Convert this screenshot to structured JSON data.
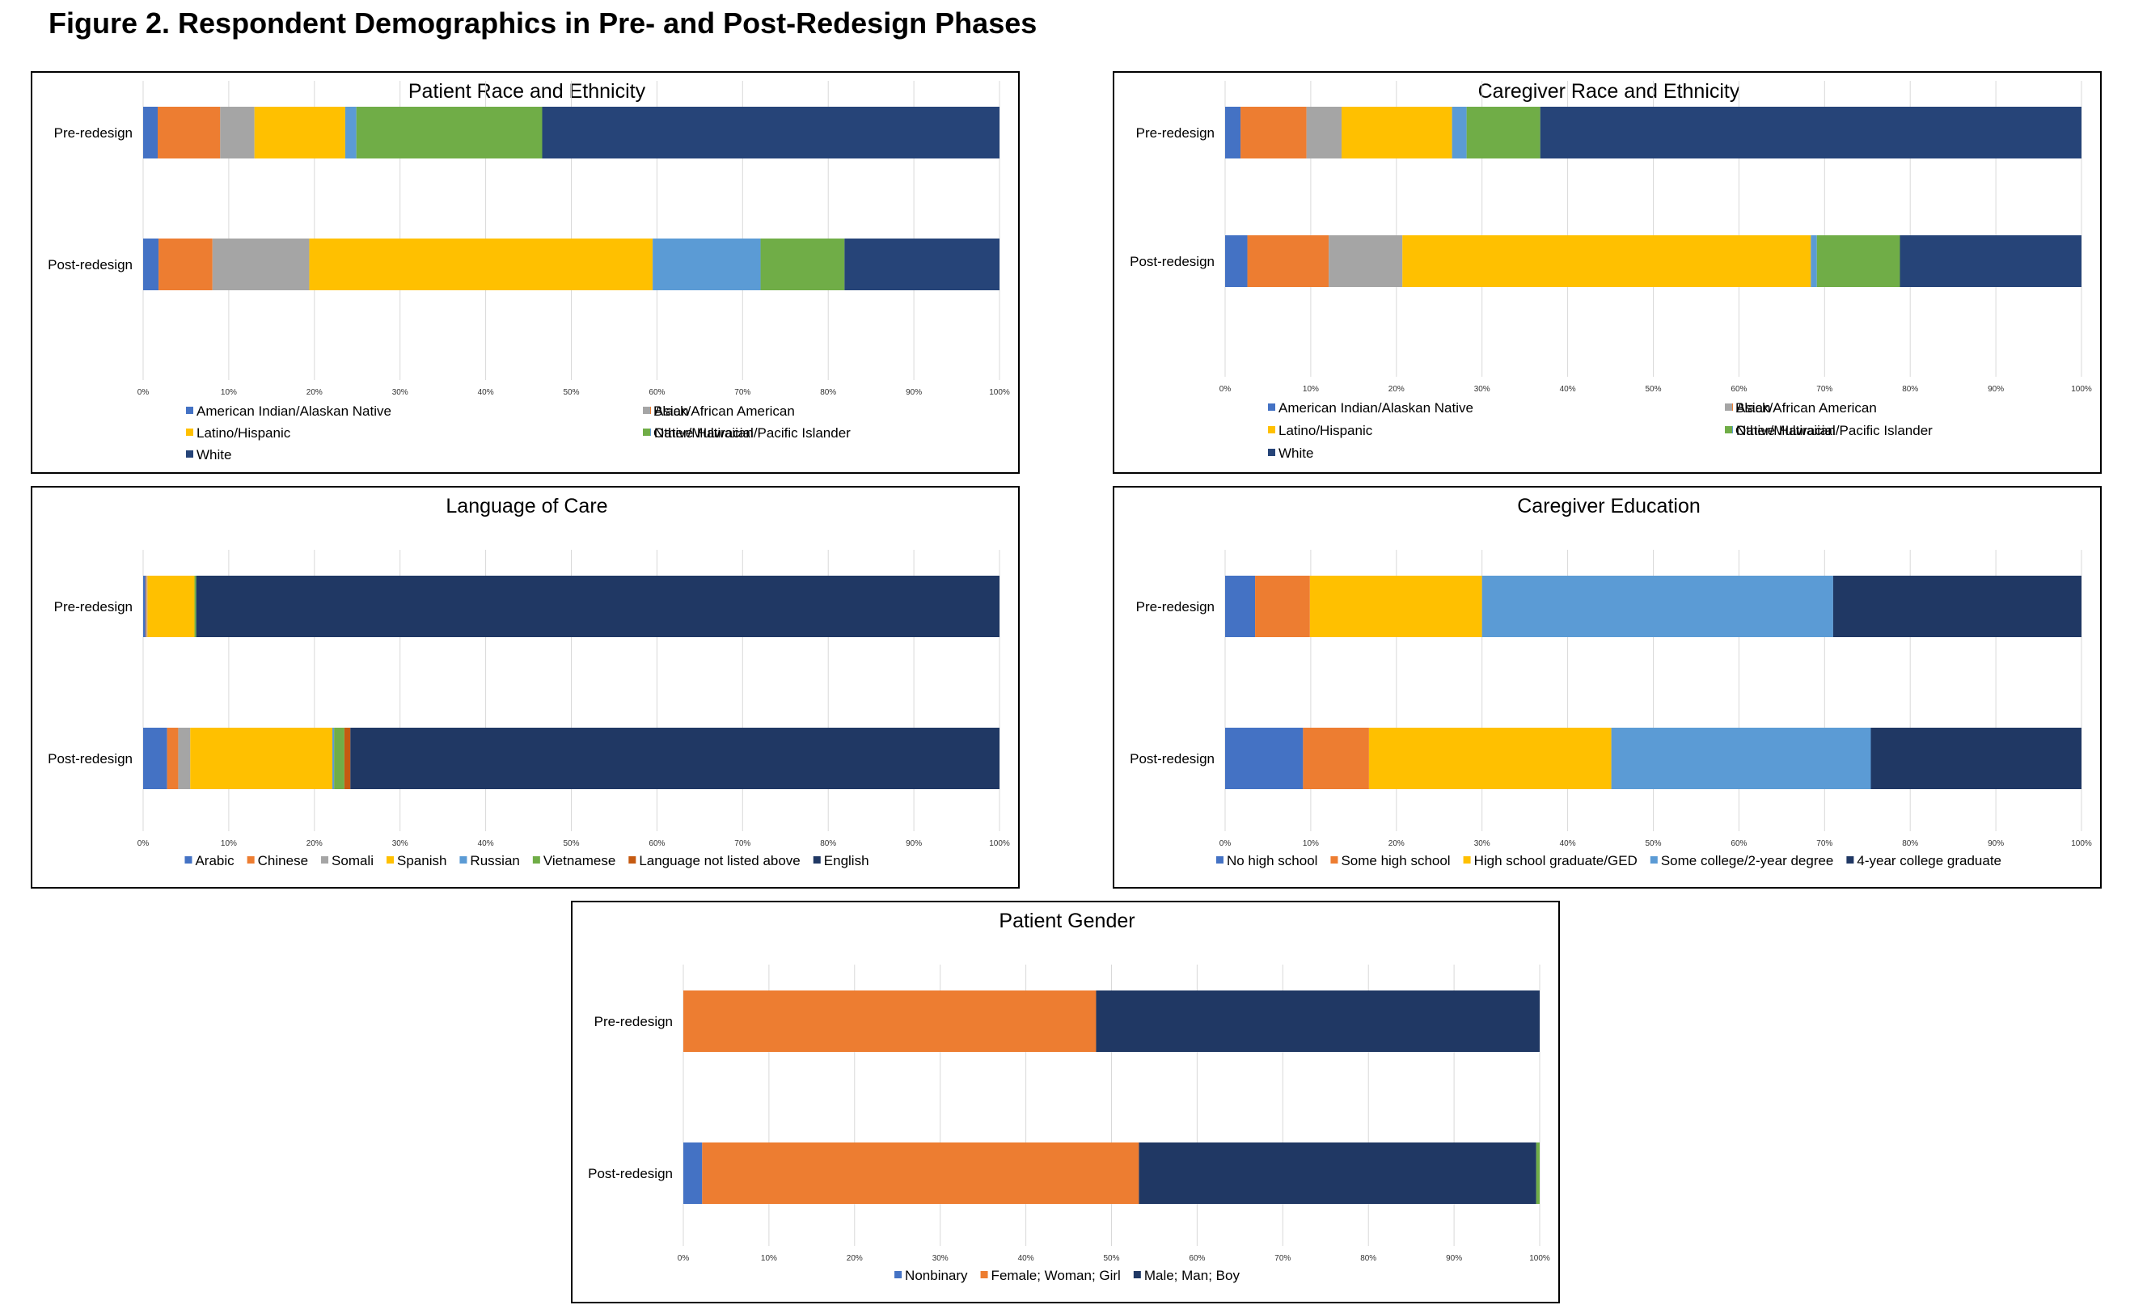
{
  "figure_title": "Figure 2. Respondent Demographics in Pre- and Post-Redesign Phases",
  "chart_data": [
    {
      "id": "race",
      "type": "bar",
      "orientation": "horizontal",
      "stacked": true,
      "title": "Patient Race and Ethnicity",
      "categories": [
        "Pre-redesign",
        "Post-redesign"
      ],
      "xlim": [
        0,
        100
      ],
      "xticks": [
        "0%",
        "10%",
        "20%",
        "30%",
        "40%",
        "50%",
        "60%",
        "70%",
        "80%",
        "90%",
        "100%"
      ],
      "grid": true,
      "legend_position": "bottom",
      "series": [
        {
          "name": "American Indian/Alaskan Native",
          "color": "#4472c4",
          "values": [
            1.7,
            1.8
          ]
        },
        {
          "name": "Asian",
          "color": "#ed7d31",
          "values": [
            7.3,
            6.3
          ]
        },
        {
          "name": "Black/African American",
          "color": "#a5a5a5",
          "values": [
            4.0,
            11.3
          ]
        },
        {
          "name": "Latino/Hispanic",
          "color": "#ffc000",
          "values": [
            10.6,
            40.1
          ]
        },
        {
          "name": "Native Hawaiian/Pacific Islander",
          "color": "#5b9bd5",
          "values": [
            1.3,
            12.6
          ]
        },
        {
          "name": "Other/Multiracial",
          "color": "#70ad47",
          "values": [
            21.7,
            9.8
          ]
        },
        {
          "name": "White",
          "color": "#264478",
          "values": [
            53.4,
            18.1
          ]
        }
      ]
    },
    {
      "id": "cg_race",
      "type": "bar",
      "orientation": "horizontal",
      "stacked": true,
      "title": "Caregiver Race and Ethnicity",
      "categories": [
        "Pre-redesign",
        "Post-redesign"
      ],
      "xlim": [
        0,
        100
      ],
      "xticks": [
        "0%",
        "10%",
        "20%",
        "30%",
        "40%",
        "50%",
        "60%",
        "70%",
        "80%",
        "90%",
        "100%"
      ],
      "grid": true,
      "legend_position": "bottom",
      "series": [
        {
          "name": "American Indian/Alaskan Native",
          "color": "#4472c4",
          "values": [
            1.8,
            2.6
          ]
        },
        {
          "name": "Asian",
          "color": "#ed7d31",
          "values": [
            7.7,
            9.5
          ]
        },
        {
          "name": "Black/African American",
          "color": "#a5a5a5",
          "values": [
            4.1,
            8.6
          ]
        },
        {
          "name": "Latino/Hispanic",
          "color": "#ffc000",
          "values": [
            12.9,
            47.7
          ]
        },
        {
          "name": "Native Hawaiian/Pacific Islander",
          "color": "#5b9bd5",
          "values": [
            1.7,
            0.7
          ]
        },
        {
          "name": "Other/Multiracial",
          "color": "#70ad47",
          "values": [
            8.6,
            9.7
          ]
        },
        {
          "name": "White",
          "color": "#264478",
          "values": [
            63.2,
            21.2
          ]
        }
      ]
    },
    {
      "id": "language",
      "type": "bar",
      "orientation": "horizontal",
      "stacked": true,
      "title": "Language of Care",
      "categories": [
        "Pre-redesign",
        "Post-redesign"
      ],
      "xlim": [
        0,
        100
      ],
      "xticks": [
        "0%",
        "10%",
        "20%",
        "30%",
        "40%",
        "50%",
        "60%",
        "70%",
        "80%",
        "90%",
        "100%"
      ],
      "grid": true,
      "legend_position": "bottom",
      "series": [
        {
          "name": "Arabic",
          "color": "#4472c4",
          "values": [
            0.3,
            2.8
          ]
        },
        {
          "name": "Chinese",
          "color": "#ed7d31",
          "values": [
            0.1,
            1.3
          ]
        },
        {
          "name": "Somali",
          "color": "#a5a5a5",
          "values": [
            0.1,
            1.4
          ]
        },
        {
          "name": "Spanish",
          "color": "#ffc000",
          "values": [
            5.5,
            16.6
          ]
        },
        {
          "name": "Russian",
          "color": "#5b9bd5",
          "values": [
            0.0,
            0.2
          ]
        },
        {
          "name": "Vietnamese",
          "color": "#70ad47",
          "values": [
            0.2,
            1.2
          ]
        },
        {
          "name": "Language not listed above",
          "color": "#c55a11",
          "values": [
            0.0,
            0.7
          ]
        },
        {
          "name": "English",
          "color": "#203864",
          "values": [
            93.8,
            75.8
          ]
        }
      ]
    },
    {
      "id": "education",
      "type": "bar",
      "orientation": "horizontal",
      "stacked": true,
      "title": "Caregiver Education",
      "categories": [
        "Pre-redesign",
        "Post-redesign"
      ],
      "xlim": [
        0,
        100
      ],
      "xticks": [
        "0%",
        "10%",
        "20%",
        "30%",
        "40%",
        "50%",
        "60%",
        "70%",
        "80%",
        "90%",
        "100%"
      ],
      "grid": true,
      "legend_position": "bottom",
      "series": [
        {
          "name": "No high school",
          "color": "#4472c4",
          "values": [
            3.5,
            9.1
          ]
        },
        {
          "name": "Some high school",
          "color": "#ed7d31",
          "values": [
            6.4,
            7.7
          ]
        },
        {
          "name": "High school graduate/GED",
          "color": "#ffc000",
          "values": [
            20.1,
            28.3
          ]
        },
        {
          "name": "Some college/2-year degree",
          "color": "#5b9bd5",
          "values": [
            41.0,
            30.3
          ]
        },
        {
          "name": "4-year college graduate",
          "color": "#203864",
          "values": [
            29.0,
            24.6
          ]
        }
      ]
    },
    {
      "id": "gender",
      "type": "bar",
      "orientation": "horizontal",
      "stacked": true,
      "title": "Patient Gender",
      "categories": [
        "Pre-redesign",
        "Post-redesign"
      ],
      "xlim": [
        0,
        100
      ],
      "xticks": [
        "0%",
        "10%",
        "20%",
        "30%",
        "40%",
        "50%",
        "60%",
        "70%",
        "80%",
        "90%",
        "100%"
      ],
      "grid": true,
      "legend_position": "bottom",
      "series": [
        {
          "name": "Nonbinary",
          "color": "#4472c4",
          "values": [
            0.0,
            2.2
          ]
        },
        {
          "name": "Female; Woman; Girl",
          "color": "#ed7d31",
          "values": [
            48.2,
            51.0
          ]
        },
        {
          "name": "Male; Man; Boy",
          "color": "#203864",
          "values": [
            51.8,
            46.4
          ]
        },
        {
          "name": "",
          "color": "#70ad47",
          "values": [
            0.0,
            0.4
          ]
        }
      ]
    }
  ]
}
